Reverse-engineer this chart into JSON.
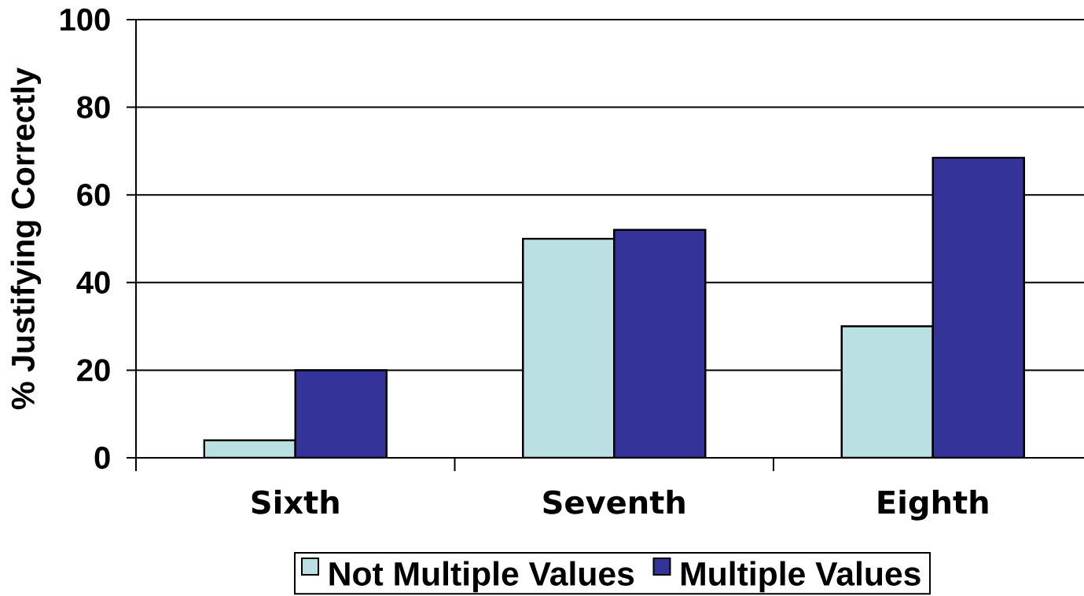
{
  "chart_data": {
    "type": "bar",
    "ylabel": "% Justifying Correctly",
    "categories": [
      "Sixth",
      "Seventh",
      "Eighth"
    ],
    "series": [
      {
        "name": "Not Multiple Values",
        "color": "#bbe0e3",
        "values": [
          4,
          50,
          30
        ]
      },
      {
        "name": "Multiple Values",
        "color": "#333399",
        "values": [
          20,
          52,
          68.5
        ]
      }
    ],
    "ylim": [
      0,
      100
    ],
    "yticks": [
      0,
      20,
      40,
      60,
      80,
      100
    ],
    "grid": "y",
    "legend": "bottom"
  }
}
